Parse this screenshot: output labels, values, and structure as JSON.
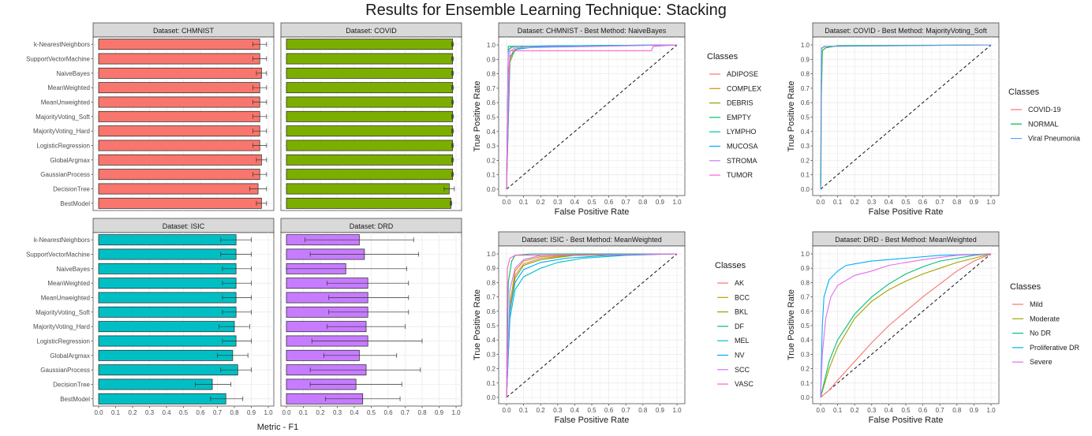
{
  "title": "Results for Ensemble Learning Technique: Stacking",
  "bar_x_label": "Metric - F1",
  "colors": {
    "CHMNIST": "#f8766d",
    "COVID": "#7cae00",
    "ISIC": "#00bfc4",
    "DRD": "#c77cff",
    "strip": "#d9d9d9",
    "grid": "#ebebeb"
  },
  "chart_data": [
    {
      "type": "bar",
      "orientation": "horizontal",
      "facet": "Dataset: CHMNIST",
      "categories": [
        "k-NearestNeighbors",
        "SupportVectorMachine",
        "NaiveBayes",
        "MeanWeighted",
        "MeanUnweighted",
        "MajorityVoting_Soft",
        "MajorityVoting_Hard",
        "LogisticRegression",
        "GlobalArgmax",
        "GaussianProcess",
        "DecisionTree",
        "BestModel"
      ],
      "values": [
        0.95,
        0.95,
        0.96,
        0.95,
        0.95,
        0.95,
        0.95,
        0.95,
        0.96,
        0.95,
        0.94,
        0.96
      ],
      "error_low": [
        0.91,
        0.91,
        0.93,
        0.91,
        0.91,
        0.91,
        0.91,
        0.91,
        0.93,
        0.91,
        0.89,
        0.93
      ],
      "error_high": [
        0.99,
        0.99,
        0.99,
        0.99,
        0.99,
        0.99,
        0.99,
        0.99,
        0.99,
        0.99,
        0.99,
        0.99
      ],
      "xlim": [
        0,
        1.0
      ],
      "xticks": [
        "0.0",
        "0.1",
        "0.2",
        "0.3",
        "0.4",
        "0.5",
        "0.6",
        "0.7",
        "0.8",
        "0.9",
        "1.0"
      ]
    },
    {
      "type": "bar",
      "orientation": "horizontal",
      "facet": "Dataset: COVID",
      "categories": [
        "k-NearestNeighbors",
        "SupportVectorMachine",
        "NaiveBayes",
        "MeanWeighted",
        "MeanUnweighted",
        "MajorityVoting_Soft",
        "MajorityVoting_Hard",
        "LogisticRegression",
        "GlobalArgmax",
        "GaussianProcess",
        "DecisionTree",
        "BestModel"
      ],
      "values": [
        0.98,
        0.98,
        0.98,
        0.98,
        0.98,
        0.98,
        0.98,
        0.98,
        0.98,
        0.98,
        0.96,
        0.97
      ],
      "error_low": [
        0.975,
        0.975,
        0.975,
        0.975,
        0.975,
        0.975,
        0.975,
        0.975,
        0.975,
        0.975,
        0.93,
        0.965
      ],
      "error_high": [
        0.985,
        0.985,
        0.985,
        0.985,
        0.985,
        0.985,
        0.985,
        0.985,
        0.985,
        0.985,
        0.99,
        0.975
      ],
      "xlim": [
        0,
        1.0
      ],
      "xticks": [
        "0.0",
        "0.1",
        "0.2",
        "0.3",
        "0.4",
        "0.5",
        "0.6",
        "0.7",
        "0.8",
        "0.9",
        "1.0"
      ]
    },
    {
      "type": "bar",
      "orientation": "horizontal",
      "facet": "Dataset: ISIC",
      "categories": [
        "k-NearestNeighbors",
        "SupportVectorMachine",
        "NaiveBayes",
        "MeanWeighted",
        "MeanUnweighted",
        "MajorityVoting_Soft",
        "MajorityVoting_Hard",
        "LogisticRegression",
        "GlobalArgmax",
        "GaussianProcess",
        "DecisionTree",
        "BestModel"
      ],
      "values": [
        0.81,
        0.81,
        0.81,
        0.81,
        0.81,
        0.81,
        0.8,
        0.81,
        0.79,
        0.82,
        0.67,
        0.75
      ],
      "error_low": [
        0.72,
        0.72,
        0.73,
        0.73,
        0.73,
        0.73,
        0.71,
        0.73,
        0.7,
        0.72,
        0.57,
        0.66
      ],
      "error_high": [
        0.9,
        0.9,
        0.9,
        0.9,
        0.9,
        0.9,
        0.89,
        0.9,
        0.88,
        0.9,
        0.78,
        0.85
      ],
      "xlim": [
        0,
        1.0
      ],
      "xticks": [
        "0.0",
        "0.1",
        "0.2",
        "0.3",
        "0.4",
        "0.5",
        "0.6",
        "0.7",
        "0.8",
        "0.9",
        "1.0"
      ]
    },
    {
      "type": "bar",
      "orientation": "horizontal",
      "facet": "Dataset: DRD",
      "categories": [
        "k-NearestNeighbors",
        "SupportVectorMachine",
        "NaiveBayes",
        "MeanWeighted",
        "MeanUnweighted",
        "MajorityVoting_Soft",
        "MajorityVoting_Hard",
        "LogisticRegression",
        "GlobalArgmax",
        "GaussianProcess",
        "DecisionTree",
        "BestModel"
      ],
      "values": [
        0.43,
        0.46,
        0.35,
        0.48,
        0.48,
        0.48,
        0.47,
        0.48,
        0.43,
        0.47,
        0.41,
        0.45
      ],
      "error_low": [
        0.11,
        0.14,
        0.0,
        0.24,
        0.25,
        0.25,
        0.24,
        0.15,
        0.22,
        0.14,
        0.14,
        0.23
      ],
      "error_high": [
        0.75,
        0.78,
        0.71,
        0.72,
        0.72,
        0.72,
        0.7,
        0.8,
        0.65,
        0.79,
        0.68,
        0.67
      ],
      "xlim": [
        0,
        1.0
      ],
      "xticks": [
        "0.0",
        "0.1",
        "0.2",
        "0.3",
        "0.4",
        "0.5",
        "0.6",
        "0.7",
        "0.8",
        "0.9",
        "1.0"
      ]
    },
    {
      "type": "line",
      "title": "Dataset: CHMNIST - Best Method: NaiveBayes",
      "xlabel": "False Positive Rate",
      "ylabel": "True Positive Rate",
      "xlim": [
        0,
        1
      ],
      "ylim": [
        0,
        1
      ],
      "xticks": [
        "0.0",
        "0.1",
        "0.2",
        "0.3",
        "0.4",
        "0.5",
        "0.6",
        "0.7",
        "0.8",
        "0.9",
        "1.0"
      ],
      "yticks": [
        "0.0",
        "0.1",
        "0.2",
        "0.3",
        "0.4",
        "0.5",
        "0.6",
        "0.7",
        "0.8",
        "0.9",
        "1.0"
      ],
      "legend_title": "Classes",
      "legend_position": "right",
      "series": [
        {
          "name": "ADIPOSE",
          "color": "#f8766d",
          "x": [
            0,
            0.01,
            0.05,
            1
          ],
          "y": [
            0,
            0.97,
            0.99,
            1
          ]
        },
        {
          "name": "COMPLEX",
          "color": "#cd9600",
          "x": [
            0,
            0.01,
            0.02,
            0.04,
            0.1,
            1
          ],
          "y": [
            0,
            0.8,
            0.9,
            0.96,
            0.99,
            1
          ]
        },
        {
          "name": "DEBRIS",
          "color": "#7cae00",
          "x": [
            0,
            0.02,
            0.05,
            0.2,
            1
          ],
          "y": [
            0,
            0.88,
            0.97,
            0.99,
            1
          ]
        },
        {
          "name": "EMPTY",
          "color": "#00be67",
          "x": [
            0,
            0.01,
            1
          ],
          "y": [
            0,
            0.99,
            1
          ]
        },
        {
          "name": "LYMPHO",
          "color": "#00bfc4",
          "x": [
            0,
            0.01,
            0.03,
            1
          ],
          "y": [
            0,
            0.96,
            0.99,
            1
          ]
        },
        {
          "name": "MUCOSA",
          "color": "#00a9ff",
          "x": [
            0,
            0.02,
            0.06,
            0.2,
            1
          ],
          "y": [
            0,
            0.92,
            0.97,
            0.99,
            1
          ]
        },
        {
          "name": "STROMA",
          "color": "#c77cff",
          "x": [
            0,
            0.01,
            0.05,
            1
          ],
          "y": [
            0,
            0.95,
            0.98,
            1
          ]
        },
        {
          "name": "TUMOR",
          "color": "#ff61cc",
          "x": [
            0,
            0.01,
            0.02,
            0.85,
            0.86,
            1
          ],
          "y": [
            0,
            0.6,
            0.96,
            0.96,
            0.99,
            1
          ]
        }
      ]
    },
    {
      "type": "line",
      "title": "Dataset: COVID - Best Method: MajorityVoting_Soft",
      "xlabel": "False Positive Rate",
      "ylabel": "True Positive Rate",
      "xlim": [
        0,
        1
      ],
      "ylim": [
        0,
        1
      ],
      "xticks": [
        "0.0",
        "0.1",
        "0.2",
        "0.3",
        "0.4",
        "0.5",
        "0.6",
        "0.7",
        "0.8",
        "0.9",
        "1.0"
      ],
      "yticks": [
        "0.0",
        "0.1",
        "0.2",
        "0.3",
        "0.4",
        "0.5",
        "0.6",
        "0.7",
        "0.8",
        "0.9",
        "1.0"
      ],
      "legend_title": "Classes",
      "legend_position": "right",
      "series": [
        {
          "name": "COVID-19",
          "color": "#f8766d",
          "x": [
            0,
            0.005,
            0.02,
            1
          ],
          "y": [
            0,
            0.97,
            0.99,
            1
          ]
        },
        {
          "name": "NORMAL",
          "color": "#00ba38",
          "x": [
            0,
            0.005,
            0.01,
            0.03,
            0.1,
            1
          ],
          "y": [
            0,
            0.65,
            0.96,
            0.98,
            0.995,
            1
          ]
        },
        {
          "name": "Viral Pneumonia",
          "color": "#619cff",
          "x": [
            0,
            0.003,
            0.005,
            0.03,
            1
          ],
          "y": [
            0,
            0.05,
            0.98,
            0.99,
            1
          ]
        }
      ]
    },
    {
      "type": "line",
      "title": "Dataset: ISIC - Best Method: MeanWeighted",
      "xlabel": "False Positive Rate",
      "ylabel": "True Positive Rate",
      "xlim": [
        0,
        1
      ],
      "ylim": [
        0,
        1
      ],
      "xticks": [
        "0.0",
        "0.1",
        "0.2",
        "0.3",
        "0.4",
        "0.5",
        "0.6",
        "0.7",
        "0.8",
        "0.9",
        "1.0"
      ],
      "yticks": [
        "0.0",
        "0.1",
        "0.2",
        "0.3",
        "0.4",
        "0.5",
        "0.6",
        "0.7",
        "0.8",
        "0.9",
        "1.0"
      ],
      "legend_title": "Classes",
      "legend_position": "right",
      "series": [
        {
          "name": "AK",
          "color": "#f8766d",
          "x": [
            0,
            0.02,
            0.05,
            0.1,
            0.2,
            0.4,
            1
          ],
          "y": [
            0,
            0.6,
            0.85,
            0.93,
            0.97,
            0.99,
            1
          ]
        },
        {
          "name": "BCC",
          "color": "#cd9600",
          "x": [
            0,
            0.02,
            0.05,
            0.1,
            0.2,
            0.4,
            1
          ],
          "y": [
            0,
            0.65,
            0.88,
            0.95,
            0.98,
            0.99,
            1
          ]
        },
        {
          "name": "BKL",
          "color": "#7cae00",
          "x": [
            0,
            0.02,
            0.05,
            0.1,
            0.2,
            0.4,
            1
          ],
          "y": [
            0,
            0.6,
            0.83,
            0.92,
            0.96,
            0.99,
            1
          ]
        },
        {
          "name": "DF",
          "color": "#00be67",
          "x": [
            0,
            0.01,
            0.03,
            0.05,
            0.15,
            1
          ],
          "y": [
            0,
            0.8,
            0.95,
            0.99,
            1,
            1
          ]
        },
        {
          "name": "MEL",
          "color": "#00bfc4",
          "x": [
            0,
            0.02,
            0.05,
            0.1,
            0.2,
            0.3,
            0.45,
            0.7,
            1
          ],
          "y": [
            0,
            0.55,
            0.75,
            0.84,
            0.9,
            0.94,
            0.97,
            0.99,
            1
          ]
        },
        {
          "name": "NV",
          "color": "#00a9ff",
          "x": [
            0,
            0.02,
            0.05,
            0.1,
            0.2,
            0.35,
            0.6,
            1
          ],
          "y": [
            0,
            0.6,
            0.8,
            0.89,
            0.94,
            0.97,
            0.99,
            1
          ]
        },
        {
          "name": "SCC",
          "color": "#c77cff",
          "x": [
            0,
            0.02,
            0.05,
            0.1,
            0.2,
            1
          ],
          "y": [
            0,
            0.75,
            0.9,
            0.96,
            0.99,
            1
          ]
        },
        {
          "name": "VASC",
          "color": "#ff61cc",
          "x": [
            0,
            0.005,
            0.02,
            0.05,
            1
          ],
          "y": [
            0,
            0.9,
            0.97,
            0.99,
            1
          ]
        }
      ]
    },
    {
      "type": "line",
      "title": "Dataset: DRD - Best Method: MeanWeighted",
      "xlabel": "False Positive Rate",
      "ylabel": "True Positive Rate",
      "xlim": [
        0,
        1
      ],
      "ylim": [
        0,
        1
      ],
      "xticks": [
        "0.0",
        "0.1",
        "0.2",
        "0.3",
        "0.4",
        "0.5",
        "0.6",
        "0.7",
        "0.8",
        "0.9",
        "1.0"
      ],
      "yticks": [
        "0.0",
        "0.1",
        "0.2",
        "0.3",
        "0.4",
        "0.5",
        "0.6",
        "0.7",
        "0.8",
        "0.9",
        "1.0"
      ],
      "legend_title": "Classes",
      "legend_position": "right",
      "series": [
        {
          "name": "Mild",
          "color": "#f8766d",
          "x": [
            0,
            0.05,
            0.1,
            0.2,
            0.3,
            0.4,
            0.5,
            0.6,
            0.7,
            0.8,
            0.9,
            1
          ],
          "y": [
            0,
            0.05,
            0.12,
            0.25,
            0.38,
            0.5,
            0.6,
            0.7,
            0.79,
            0.88,
            0.95,
            1
          ]
        },
        {
          "name": "Moderate",
          "color": "#a3a500",
          "x": [
            0,
            0.05,
            0.1,
            0.2,
            0.3,
            0.4,
            0.5,
            0.6,
            0.7,
            0.8,
            0.9,
            1
          ],
          "y": [
            0,
            0.2,
            0.35,
            0.55,
            0.67,
            0.75,
            0.81,
            0.86,
            0.9,
            0.94,
            0.97,
            1
          ]
        },
        {
          "name": "No DR",
          "color": "#00bf7d",
          "x": [
            0,
            0.05,
            0.1,
            0.2,
            0.3,
            0.4,
            0.5,
            0.6,
            0.7,
            0.8,
            0.9,
            1
          ],
          "y": [
            0,
            0.25,
            0.4,
            0.58,
            0.7,
            0.79,
            0.86,
            0.91,
            0.95,
            0.97,
            0.99,
            1
          ]
        },
        {
          "name": "Proliferative DR",
          "color": "#00b0f6",
          "x": [
            0,
            0.01,
            0.02,
            0.05,
            0.1,
            0.15,
            0.2,
            0.3,
            0.5,
            0.7,
            1
          ],
          "y": [
            0,
            0.5,
            0.7,
            0.82,
            0.88,
            0.92,
            0.93,
            0.95,
            0.97,
            0.99,
            1
          ]
        },
        {
          "name": "Severe",
          "color": "#e76bf3",
          "x": [
            0,
            0.01,
            0.03,
            0.06,
            0.1,
            0.2,
            0.3,
            0.4,
            0.6,
            0.8,
            1
          ],
          "y": [
            0,
            0.3,
            0.55,
            0.7,
            0.78,
            0.85,
            0.88,
            0.92,
            0.96,
            0.99,
            1
          ]
        }
      ]
    }
  ]
}
